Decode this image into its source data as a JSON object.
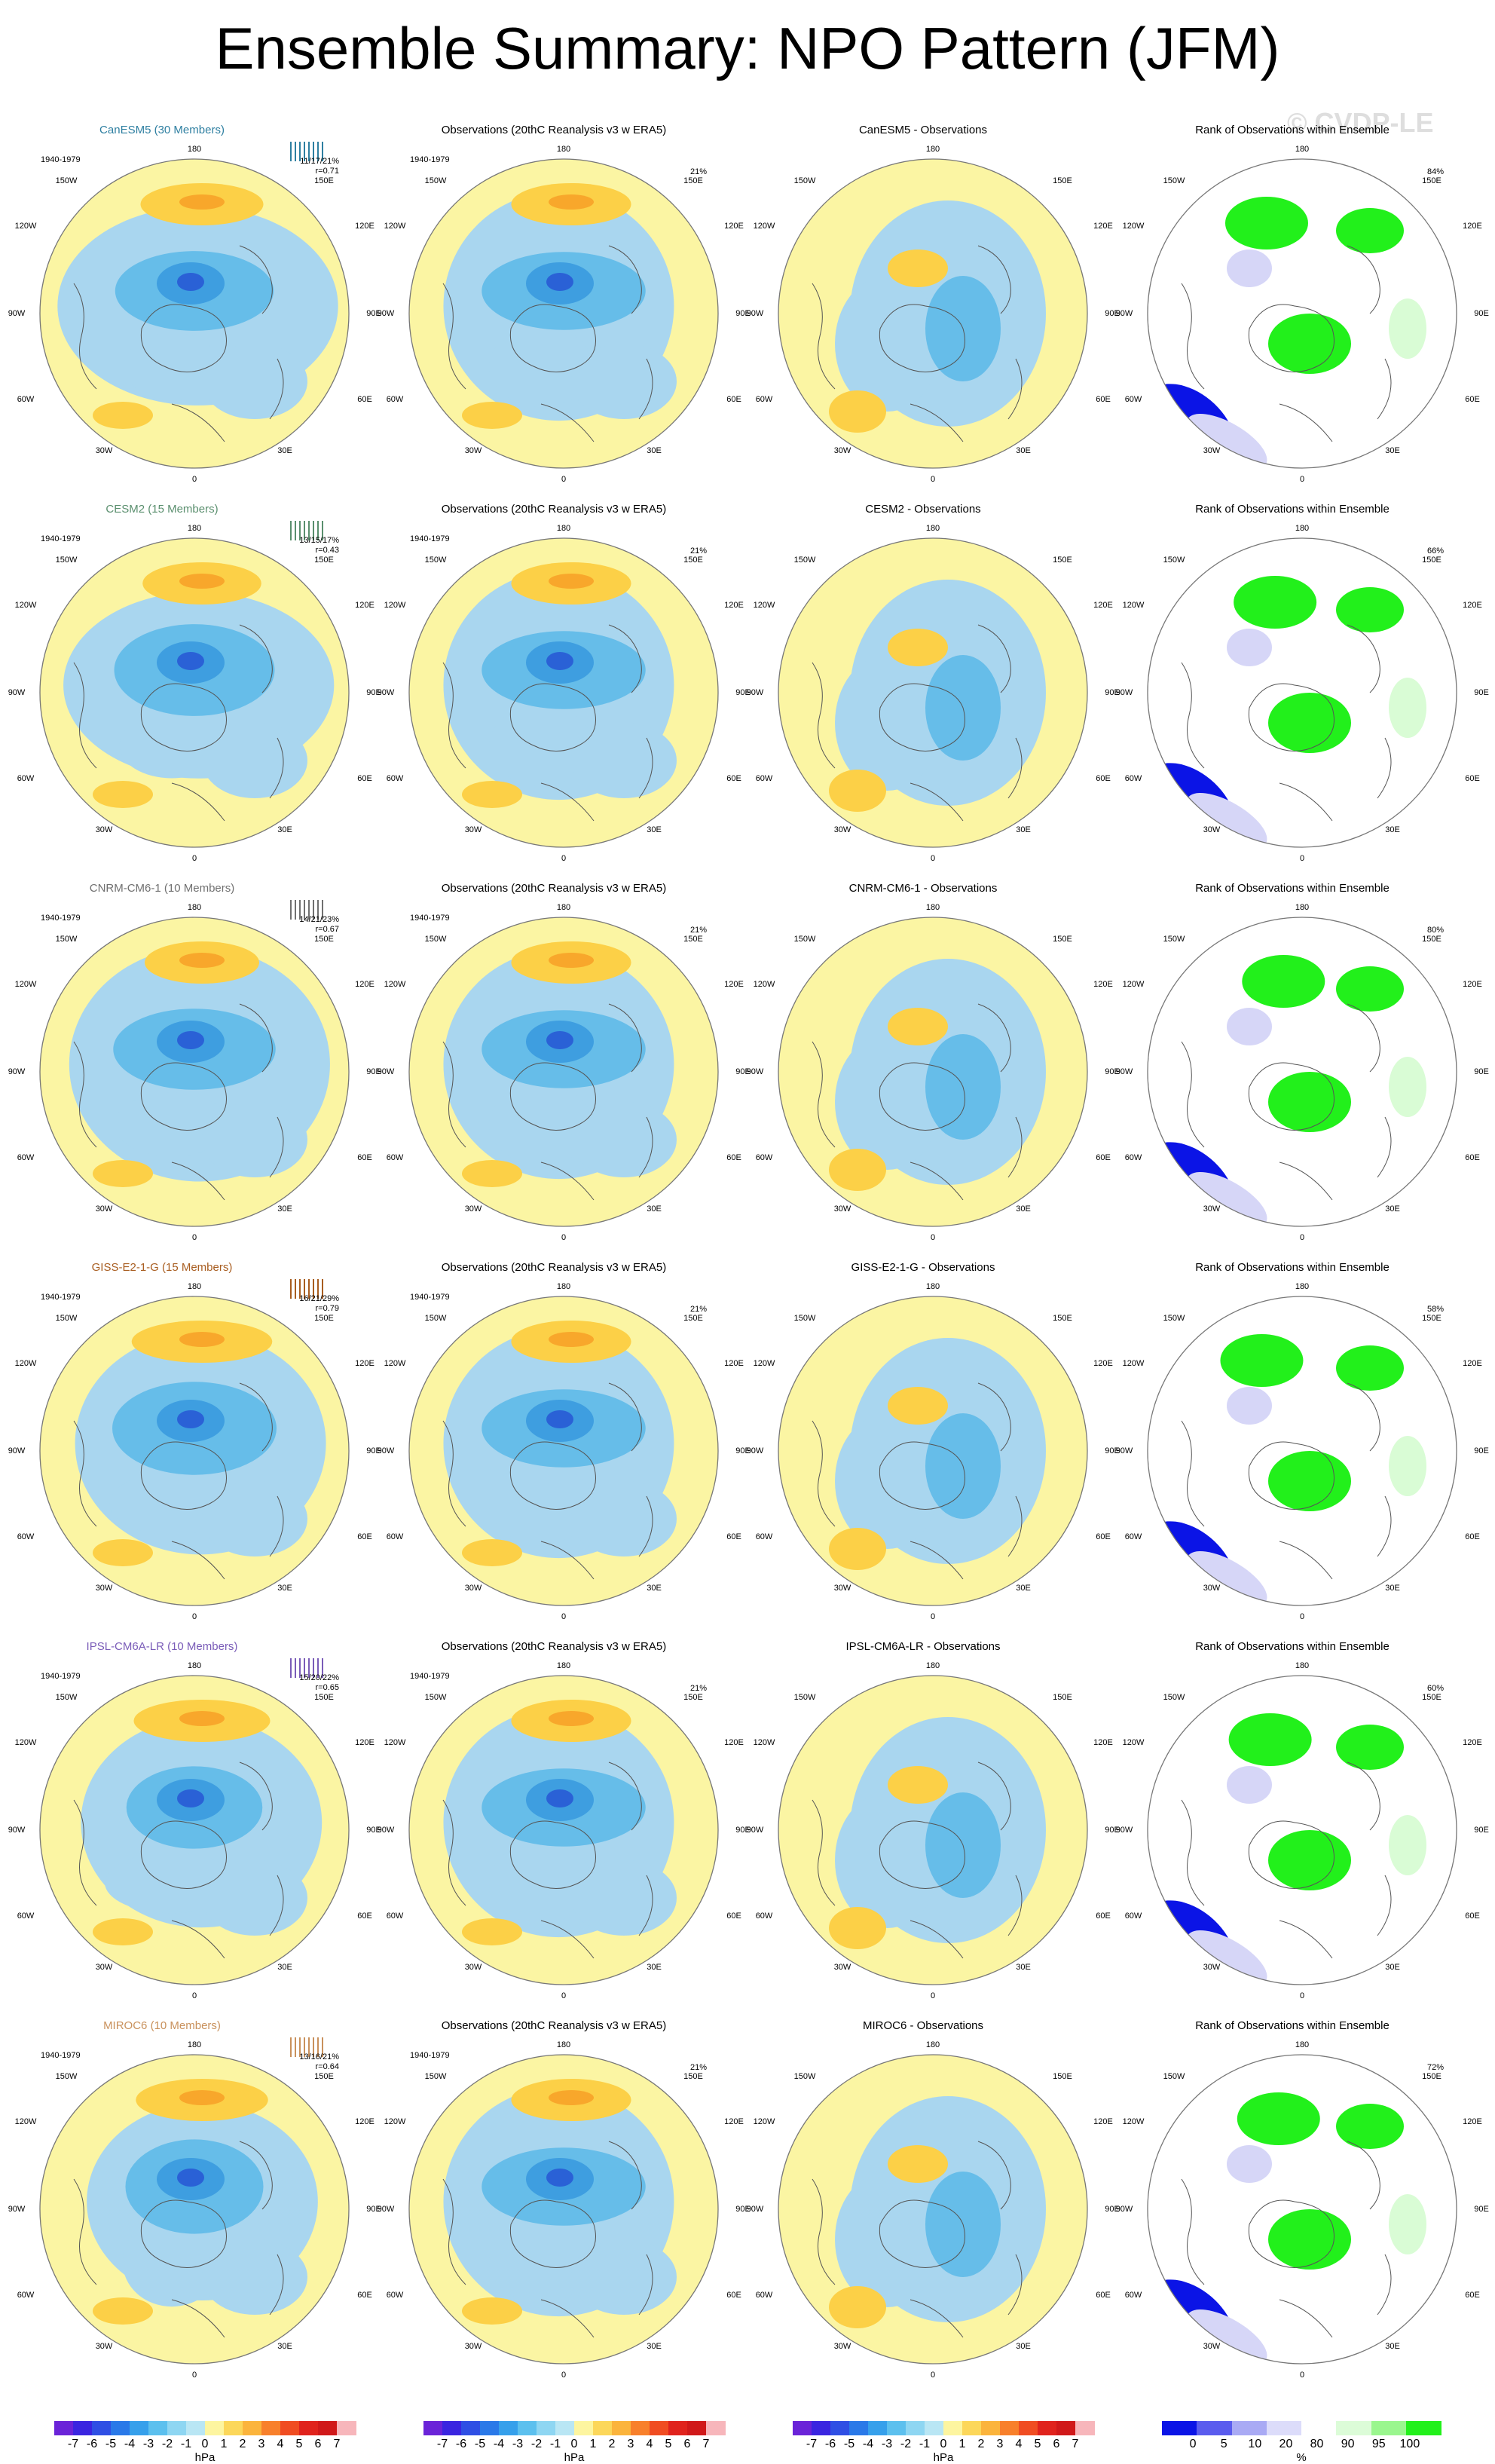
{
  "title": "Ensemble Summary: NPO Pattern (JFM)",
  "watermark": "© CVDP-LE",
  "axis_labels": {
    "top": "180",
    "bottom": "0",
    "nw": "150W",
    "ne": "150E",
    "wnw": "120W",
    "ene": "120E",
    "w": "90W",
    "e": "90E",
    "wsw": "60W",
    "ese": "60E",
    "sw": "30W",
    "se": "30E"
  },
  "period": "1940-1979",
  "obs_title": "Observations (20thC Reanalysis v3 w ERA5)",
  "obs_pct": "21%",
  "rank_title": "Rank of Observations within Ensemble",
  "colors": {
    "ocean_yellow": "#fbf5a3",
    "light_blue": "#a9d6ef",
    "mid_blue": "#66bde9",
    "blue": "#3e9ee0",
    "deep_blue": "#2a61d6",
    "orange_light": "#fcd047",
    "orange": "#f8a72b",
    "rank_green": "#22f01b",
    "rank_lightgreen": "#d9fcd5",
    "rank_blue": "#0b14e6",
    "rank_lightblue": "#d6d6f7"
  },
  "rows": [
    {
      "model": "CanESM5 (30 Members)",
      "model_color": "#2e7fa1",
      "stats": "11/17/21%",
      "r": "r=0.71",
      "diff_title": "CanESM5 - Observations",
      "rank_pct": "84%"
    },
    {
      "model": "CESM2 (15 Members)",
      "model_color": "#5a8f6e",
      "stats": "13/15/17%",
      "r": "r=0.43",
      "diff_title": "CESM2 - Observations",
      "rank_pct": "66%"
    },
    {
      "model": "CNRM-CM6-1 (10 Members)",
      "model_color": "#707070",
      "stats": "14/21/23%",
      "r": "r=0.67",
      "diff_title": "CNRM-CM6-1 - Observations",
      "rank_pct": "80%"
    },
    {
      "model": "GISS-E2-1-G (15 Members)",
      "model_color": "#a85d20",
      "stats": "16/21/29%",
      "r": "r=0.79",
      "diff_title": "GISS-E2-1-G - Observations",
      "rank_pct": "58%"
    },
    {
      "model": "IPSL-CM6A-LR (10 Members)",
      "model_color": "#7a5cb8",
      "stats": "15/20/22%",
      "r": "r=0.65",
      "diff_title": "IPSL-CM6A-LR - Observations",
      "rank_pct": "60%"
    },
    {
      "model": "MIROC6 (10 Members)",
      "model_color": "#c9915c",
      "stats": "13/16/21%",
      "r": "r=0.64",
      "diff_title": "MIROC6 - Observations",
      "rank_pct": "72%"
    }
  ],
  "colorbar_hpa": {
    "ticks": [
      "-7",
      "-6",
      "-5",
      "-4",
      "-3",
      "-2",
      "-1",
      "0",
      "1",
      "2",
      "3",
      "4",
      "5",
      "6",
      "7"
    ],
    "colors": [
      "#6a23d8",
      "#3a25e0",
      "#2f4fe4",
      "#2a79e8",
      "#36a0eb",
      "#5cc0ee",
      "#8ed6f2",
      "#b9e6f4",
      "#fdf5a0",
      "#fcd75a",
      "#fbb43c",
      "#f8802b",
      "#f04d22",
      "#e0231d",
      "#d0191a",
      "#f7b6bb"
    ],
    "unit": "hPa"
  },
  "colorbar_rank": {
    "ticks": [
      "0",
      "5",
      "10",
      "20",
      "80",
      "90",
      "95",
      "100"
    ],
    "colors": [
      "#0b14e6",
      "#5a5cee",
      "#a9aaf4",
      "#dcdcfa",
      "#ffffff",
      "#dcfcd8",
      "#9af68e",
      "#22f01b"
    ],
    "unit": "%"
  }
}
